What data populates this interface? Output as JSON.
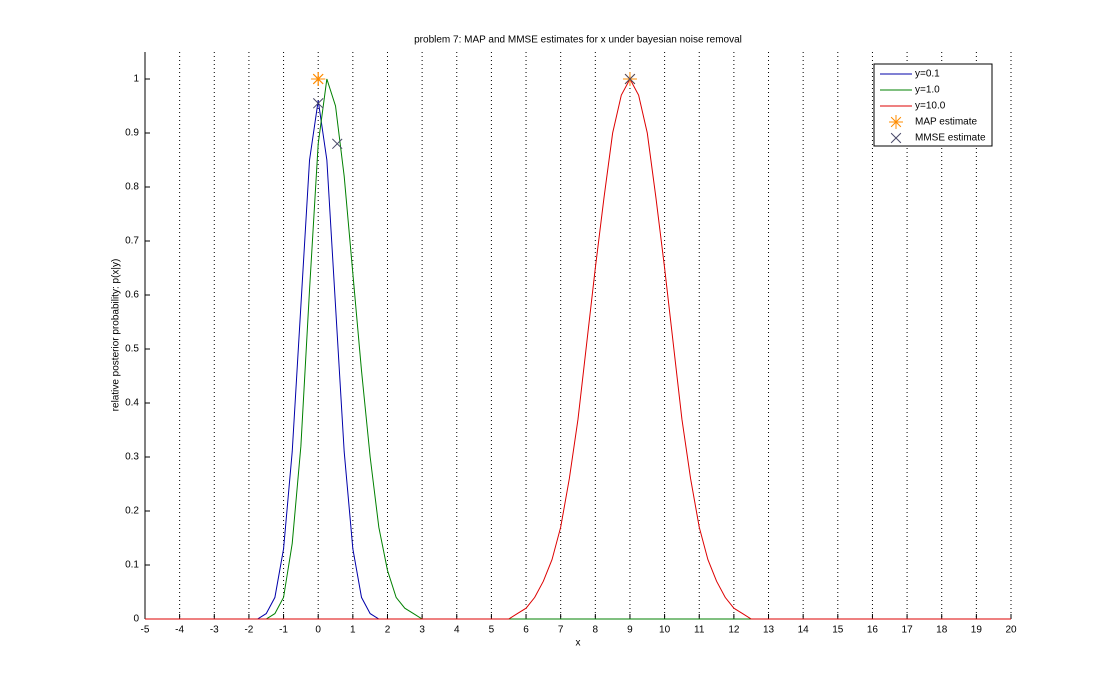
{
  "chart_data": {
    "type": "line",
    "title": "problem 7: MAP and MMSE estimates for x under bayesian noise removal",
    "x_label": "x",
    "y_label": "relative posterior probability: p(x|y)",
    "x": [
      -5,
      -3,
      -2.5,
      -2.25,
      -2,
      -1.75,
      -1.5,
      -1.25,
      -1,
      -0.75,
      -0.5,
      -0.25,
      0,
      0.25,
      0.5,
      0.75,
      1,
      1.25,
      1.5,
      1.75,
      2,
      2.25,
      2.5,
      2.75,
      3,
      3.25,
      3.5,
      3.75,
      4,
      4.25,
      4.5,
      4.75,
      5,
      5.25,
      5.5,
      5.75,
      6,
      6.25,
      6.5,
      6.75,
      7,
      7.25,
      7.5,
      7.75,
      8,
      8.25,
      8.5,
      8.75,
      9,
      9.25,
      9.5,
      9.75,
      10,
      10.25,
      10.5,
      10.75,
      11,
      11.25,
      11.5,
      11.75,
      12,
      12.25,
      12.5,
      12.75,
      13,
      15,
      20
    ],
    "series": [
      {
        "name": "y=0.1",
        "color": "#0000aa",
        "values": [
          0,
          0,
          0,
          0,
          0,
          0,
          0.01,
          0.04,
          0.13,
          0.31,
          0.58,
          0.85,
          0.96,
          0.85,
          0.58,
          0.31,
          0.13,
          0.04,
          0.01,
          0,
          0,
          0,
          0,
          0,
          0,
          0,
          0,
          0,
          0,
          0,
          0,
          0,
          0,
          0,
          0,
          0,
          0,
          0,
          0,
          0,
          0,
          0,
          0,
          0,
          0,
          0,
          0,
          0,
          0,
          0,
          0,
          0,
          0,
          0,
          0,
          0,
          0,
          0,
          0,
          0,
          0,
          0,
          0,
          0,
          0,
          0,
          0
        ]
      },
      {
        "name": "y=1.0",
        "color": "#008000",
        "values": [
          0,
          0,
          0,
          0,
          0,
          0,
          0,
          0.01,
          0.04,
          0.14,
          0.32,
          0.61,
          0.88,
          1,
          0.95,
          0.82,
          0.64,
          0.46,
          0.3,
          0.17,
          0.09,
          0.04,
          0.02,
          0.01,
          0,
          0,
          0,
          0,
          0,
          0,
          0,
          0,
          0,
          0,
          0,
          0,
          0,
          0,
          0,
          0,
          0,
          0,
          0,
          0,
          0,
          0,
          0,
          0,
          0,
          0,
          0,
          0,
          0,
          0,
          0,
          0,
          0,
          0,
          0,
          0,
          0,
          0,
          0,
          0,
          0,
          0,
          0
        ]
      },
      {
        "name": "y=10.0",
        "color": "#dd0000",
        "values": [
          0,
          0,
          0,
          0,
          0,
          0,
          0,
          0,
          0,
          0,
          0,
          0,
          0,
          0,
          0,
          0,
          0,
          0,
          0,
          0,
          0,
          0,
          0,
          0,
          0,
          0,
          0,
          0,
          0,
          0,
          0,
          0,
          0,
          0,
          0,
          0.01,
          0.02,
          0.04,
          0.07,
          0.11,
          0.17,
          0.26,
          0.37,
          0.51,
          0.65,
          0.78,
          0.9,
          0.97,
          1,
          0.97,
          0.9,
          0.78,
          0.65,
          0.51,
          0.37,
          0.26,
          0.17,
          0.11,
          0.07,
          0.04,
          0.02,
          0.01,
          0,
          0,
          0,
          0,
          0
        ]
      },
      {
        "name": "MAP estimate",
        "color": "#ff8c00",
        "marker": "asterisk",
        "x": [
          0,
          0,
          9
        ],
        "values": [
          1,
          1,
          1
        ]
      },
      {
        "name": "MMSE estimate",
        "color": "#4a4a6a",
        "marker": "cross",
        "x": [
          0,
          0.55,
          9
        ],
        "values": [
          0.955,
          0.88,
          1
        ]
      }
    ],
    "xlim": [
      -5,
      20
    ],
    "ylim": [
      0,
      1.05
    ],
    "xticks": [
      -5,
      -4,
      -3,
      -2,
      -1,
      0,
      1,
      2,
      3,
      4,
      5,
      6,
      7,
      8,
      9,
      10,
      11,
      12,
      13,
      14,
      15,
      16,
      17,
      18,
      19,
      20
    ],
    "yticks": [
      0,
      0.1,
      0.2,
      0.3,
      0.4,
      0.5,
      0.6,
      0.7,
      0.8,
      0.9,
      1
    ],
    "xgrid": true,
    "legend": "top-right"
  }
}
